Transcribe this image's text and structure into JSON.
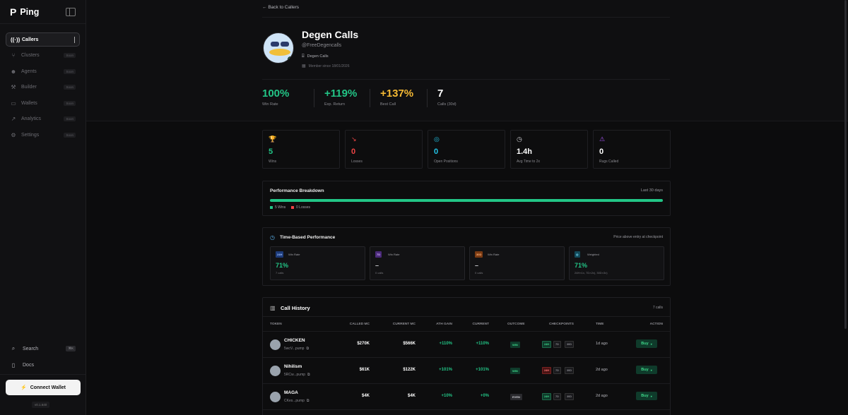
{
  "sidebar": {
    "brand": "Ping",
    "logo": "P",
    "items": [
      {
        "icon": "radio-icon",
        "glyph": "((·))",
        "label": "Callers",
        "active": true
      },
      {
        "icon": "clusters-icon",
        "glyph": "⑂",
        "label": "Clusters",
        "tag": "Soon"
      },
      {
        "icon": "agents-icon",
        "glyph": "☻",
        "label": "Agents",
        "tag": "Soon"
      },
      {
        "icon": "wrench-icon",
        "glyph": "⚒",
        "label": "Builder",
        "tag": "Soon"
      },
      {
        "icon": "wallet-icon",
        "glyph": "▭",
        "label": "Wallets",
        "tag": "Soon"
      },
      {
        "icon": "chart-line-icon",
        "glyph": "↗",
        "label": "Analytics",
        "tag": "Soon"
      },
      {
        "icon": "settings-icon",
        "glyph": "⚙",
        "label": "Settings",
        "tag": "Soon"
      }
    ],
    "search": {
      "label": "Search",
      "shortcut": "⌘K"
    },
    "docs": {
      "label": "Docs"
    },
    "connect_wallet": "Connect Wallet",
    "version": "v0.1.640"
  },
  "header": {
    "back": "Back to Callers"
  },
  "profile": {
    "name": "Degen Calls",
    "handle": "@FreeDegencalls",
    "group": "Degen Calls",
    "member_since": "Member since 18/01/2026"
  },
  "stats": [
    {
      "value": "100%",
      "label": "Win Rate",
      "color": "#22c586"
    },
    {
      "value": "+119%",
      "label": "Exp. Return",
      "color": "#22c586"
    },
    {
      "value": "+137%",
      "label": "Best Call",
      "color": "#f5b934"
    },
    {
      "value": "7",
      "label": "Calls (30d)",
      "color": "#ffffff"
    }
  ],
  "mini_cards": [
    {
      "icon": "trophy-icon",
      "glyph": "🏆",
      "icon_color": "#22c586",
      "value": "5",
      "value_color": "#22c586",
      "label": "Wins"
    },
    {
      "icon": "trend-down-icon",
      "glyph": "↘",
      "icon_color": "#ef4444",
      "value": "0",
      "value_color": "#ef4444",
      "label": "Losses"
    },
    {
      "icon": "target-icon",
      "glyph": "◎",
      "icon_color": "#22c5e8",
      "value": "0",
      "value_color": "#22c5e8",
      "label": "Open Positions"
    },
    {
      "icon": "clock-icon",
      "glyph": "◷",
      "icon_color": "#cfcfd4",
      "value": "1.4h",
      "value_color": "#ffffff",
      "label": "Avg Time to 2x"
    },
    {
      "icon": "warning-icon",
      "glyph": "⚠",
      "icon_color": "#a855f7",
      "value": "0",
      "value_color": "#ffffff",
      "label": "Rugs Called"
    }
  ],
  "performance": {
    "title": "Performance Breakdown",
    "range": "Last 30 days",
    "wins_label": "5 Wins",
    "losses_label": "0 Losses",
    "win_fraction": 1.0,
    "win_color": "#22c586",
    "loss_color": "#ef4444"
  },
  "time_based": {
    "title": "Time-Based Performance",
    "note": "Price above entry at checkpoint",
    "cards": [
      {
        "badge": "24H",
        "badge_bg": "#1d3b7a",
        "badge_color": "#9ec0ff",
        "label": "Win Rate",
        "value": "71%",
        "value_color": "#22c586",
        "sub": "7 calls"
      },
      {
        "badge": "7D",
        "badge_bg": "#4b2a7a",
        "badge_color": "#d6b8ff",
        "label": "Win Rate",
        "value": "–",
        "value_color": "#cfcfd4",
        "sub": "0 calls"
      },
      {
        "badge": "30D",
        "badge_bg": "#7a3a12",
        "badge_color": "#ffb27a",
        "label": "Win Rate",
        "value": "–",
        "value_color": "#cfcfd4",
        "sub": "0 calls"
      },
      {
        "badge": "◎",
        "badge_bg": "#124a5a",
        "badge_color": "#7fe3ff",
        "label": "Weighted",
        "value": "71%",
        "value_color": "#22c586",
        "sub": "24H×1x, 7D×2x), 30D×3x)"
      }
    ]
  },
  "call_history": {
    "title": "Call History",
    "count": "7 calls",
    "columns": [
      "TOKEN",
      "CALLED MC",
      "CURRENT MC",
      "ATH GAIN",
      "CURRENT",
      "OUTCOME",
      "CHECKPOINTS",
      "TIME",
      "ACTION"
    ],
    "rows": [
      {
        "name": "CHICKEN",
        "addr": "5wcV...pump",
        "called": "$270K",
        "current_mc": "$566K",
        "ath": "+110%",
        "current": "+110%",
        "current_color": "#22c586",
        "outcome": "WIN",
        "outcome_bg": "#0f3b2b",
        "outcome_color": "#3fd98a",
        "cp": [
          "24H",
          "7D",
          "30D"
        ],
        "cp_state": [
          "win",
          "none",
          "none"
        ],
        "time": "1d ago",
        "buy": "Buy"
      },
      {
        "name": "Nihilism",
        "addr": "5RCw...pump",
        "called": "$61K",
        "current_mc": "$122K",
        "ath": "+101%",
        "current": "+101%",
        "current_color": "#22c586",
        "outcome": "WIN",
        "outcome_bg": "#0f3b2b",
        "outcome_color": "#3fd98a",
        "cp": [
          "24H",
          "7D",
          "30D"
        ],
        "cp_state": [
          "loss",
          "none",
          "none"
        ],
        "time": "2d ago",
        "buy": "Buy"
      },
      {
        "name": "MAGA",
        "addr": "CKes...pump",
        "called": "$4K",
        "current_mc": "$4K",
        "ath": "+10%",
        "current": "+0%",
        "current_color": "#22c586",
        "outcome": "EVEN",
        "outcome_bg": "#2a2a2e",
        "outcome_color": "#cfcfd4",
        "cp": [
          "24H",
          "7D",
          "30D"
        ],
        "cp_state": [
          "win",
          "none",
          "none"
        ],
        "time": "2d ago",
        "buy": "Buy"
      }
    ]
  }
}
